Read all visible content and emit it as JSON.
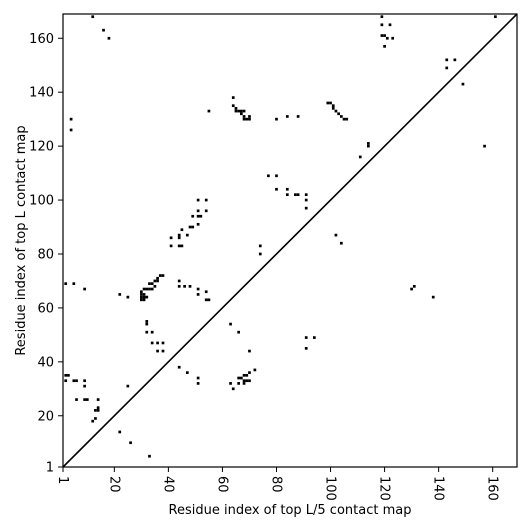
{
  "chart_data": {
    "type": "scatter",
    "title": "",
    "xlabel": "Residue index of top L/5 contact map",
    "ylabel": "Residue index of top L contact map",
    "xlim": [
      1,
      169
    ],
    "ylim": [
      1,
      169
    ],
    "xticks": [
      1,
      20,
      40,
      60,
      80,
      100,
      120,
      140,
      160
    ],
    "yticks": [
      1,
      20,
      40,
      60,
      80,
      100,
      120,
      140,
      160
    ],
    "marker": "square",
    "marker_color": "#000000",
    "diagonal_line": true,
    "grid": false,
    "points": [
      [
        12,
        168
      ],
      [
        16,
        163
      ],
      [
        18,
        160
      ],
      [
        4,
        130
      ],
      [
        4,
        126
      ],
      [
        64,
        138
      ],
      [
        64,
        135
      ],
      [
        65,
        134
      ],
      [
        65,
        133
      ],
      [
        66,
        133
      ],
      [
        67,
        133
      ],
      [
        68,
        133
      ],
      [
        67,
        132
      ],
      [
        68,
        131
      ],
      [
        68,
        130
      ],
      [
        69,
        130
      ],
      [
        70,
        131
      ],
      [
        70,
        130
      ],
      [
        55,
        133
      ],
      [
        80,
        130
      ],
      [
        84,
        131
      ],
      [
        88,
        131
      ],
      [
        99,
        136
      ],
      [
        100,
        136
      ],
      [
        101,
        135
      ],
      [
        101,
        134
      ],
      [
        102,
        133
      ],
      [
        103,
        132
      ],
      [
        104,
        131
      ],
      [
        105,
        130
      ],
      [
        106,
        130
      ],
      [
        114,
        121
      ],
      [
        114,
        120
      ],
      [
        111,
        116
      ],
      [
        119,
        168
      ],
      [
        119,
        165
      ],
      [
        122,
        165
      ],
      [
        119,
        161
      ],
      [
        120,
        161
      ],
      [
        121,
        160
      ],
      [
        123,
        160
      ],
      [
        120,
        157
      ],
      [
        143,
        152
      ],
      [
        146,
        152
      ],
      [
        143,
        149
      ],
      [
        149,
        143
      ],
      [
        157,
        120
      ],
      [
        161,
        168
      ],
      [
        77,
        109
      ],
      [
        80,
        109
      ],
      [
        80,
        104
      ],
      [
        84,
        104
      ],
      [
        84,
        102
      ],
      [
        87,
        102
      ],
      [
        88,
        102
      ],
      [
        91,
        102
      ],
      [
        91,
        100
      ],
      [
        91,
        97
      ],
      [
        51,
        100
      ],
      [
        54,
        100
      ],
      [
        51,
        96
      ],
      [
        54,
        96
      ],
      [
        51,
        94
      ],
      [
        52,
        94
      ],
      [
        49,
        94
      ],
      [
        48,
        90
      ],
      [
        49,
        90
      ],
      [
        51,
        91
      ],
      [
        45,
        89
      ],
      [
        44,
        87
      ],
      [
        47,
        87
      ],
      [
        41,
        86
      ],
      [
        44,
        86
      ],
      [
        41,
        83
      ],
      [
        44,
        83
      ],
      [
        45,
        83
      ],
      [
        74,
        83
      ],
      [
        74,
        80
      ],
      [
        102,
        87
      ],
      [
        104,
        84
      ],
      [
        2,
        69
      ],
      [
        5,
        69
      ],
      [
        9,
        67
      ],
      [
        44,
        70
      ],
      [
        44,
        68
      ],
      [
        46,
        68
      ],
      [
        48,
        68
      ],
      [
        51,
        67
      ],
      [
        51,
        65
      ],
      [
        54,
        66
      ],
      [
        54,
        63
      ],
      [
        55,
        63
      ],
      [
        130,
        67
      ],
      [
        131,
        68
      ],
      [
        138,
        64
      ],
      [
        31,
        67
      ],
      [
        32,
        67
      ],
      [
        33,
        67
      ],
      [
        34,
        67
      ],
      [
        33,
        69
      ],
      [
        34,
        69
      ],
      [
        35,
        70
      ],
      [
        36,
        70
      ],
      [
        36,
        71
      ],
      [
        37,
        72
      ],
      [
        38,
        72
      ],
      [
        35,
        68
      ],
      [
        30,
        66
      ],
      [
        30,
        65
      ],
      [
        31,
        65
      ],
      [
        30,
        64
      ],
      [
        31,
        64
      ],
      [
        32,
        64
      ],
      [
        30,
        63
      ],
      [
        31,
        63
      ],
      [
        22,
        65
      ],
      [
        25,
        64
      ],
      [
        32,
        55
      ],
      [
        32,
        54
      ],
      [
        63,
        54
      ],
      [
        32,
        51
      ],
      [
        34,
        51
      ],
      [
        66,
        51
      ],
      [
        91,
        49
      ],
      [
        94,
        49
      ],
      [
        91,
        45
      ],
      [
        34,
        47
      ],
      [
        36,
        47
      ],
      [
        38,
        47
      ],
      [
        36,
        44
      ],
      [
        38,
        44
      ],
      [
        70,
        44
      ],
      [
        44,
        38
      ],
      [
        47,
        36
      ],
      [
        72,
        37
      ],
      [
        70,
        36
      ],
      [
        69,
        35
      ],
      [
        68,
        35
      ],
      [
        67,
        34
      ],
      [
        66,
        34
      ],
      [
        68,
        33
      ],
      [
        69,
        33
      ],
      [
        70,
        33
      ],
      [
        66,
        32
      ],
      [
        68,
        32
      ],
      [
        63,
        32
      ],
      [
        64,
        30
      ],
      [
        2,
        35
      ],
      [
        3,
        35
      ],
      [
        2,
        33
      ],
      [
        5,
        33
      ],
      [
        6,
        33
      ],
      [
        9,
        33
      ],
      [
        9,
        31
      ],
      [
        51,
        34
      ],
      [
        51,
        32
      ],
      [
        25,
        31
      ],
      [
        6,
        26
      ],
      [
        9,
        26
      ],
      [
        10,
        26
      ],
      [
        14,
        26
      ],
      [
        14,
        23
      ],
      [
        14,
        22
      ],
      [
        13,
        22
      ],
      [
        13,
        19
      ],
      [
        12,
        18
      ],
      [
        22,
        14
      ],
      [
        26,
        10
      ],
      [
        33,
        5
      ]
    ]
  }
}
